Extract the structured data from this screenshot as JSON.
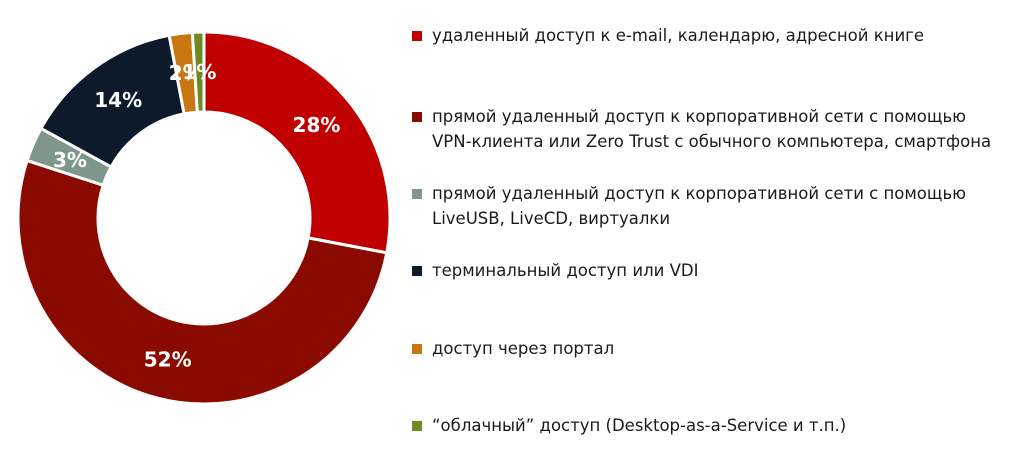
{
  "colors": {
    "email_calendar": "#c00000",
    "vpn_zerotrust": "#8b0a00",
    "liveusb": "#7f978a",
    "terminal_vdi": "#0d1a2c",
    "portal": "#c77610",
    "cloud": "#6f8a22"
  },
  "chart_data": {
    "type": "pie",
    "donut": true,
    "legend_position": "right",
    "slices": [
      {
        "label": "удаленный доступ к e-mail, календарю, адресной книге",
        "value": 28,
        "display": "28%",
        "color": "#c00000"
      },
      {
        "label": "прямой удаленный доступ к корпоративной сети с помощью\nVPN-клиента или Zero Trust с обычного компьютера, смартфона",
        "value": 52,
        "display": "52%",
        "color": "#8b0a00"
      },
      {
        "label": "прямой удаленный доступ к корпоративной сети с помощью\nLiveUSB, LiveCD, виртуалки",
        "value": 3,
        "display": "3%",
        "color": "#7f978a"
      },
      {
        "label": "терминальный доступ или VDI",
        "value": 14,
        "display": "14%",
        "color": "#0d1a2c"
      },
      {
        "label": "доступ через портал",
        "value": 2,
        "display": "2%",
        "color": "#c77610"
      },
      {
        "label": "“облачный” доступ (Desktop-as-a-Service и т.п.)",
        "value": 1,
        "display": "1%",
        "color": "#6f8a22"
      }
    ]
  }
}
